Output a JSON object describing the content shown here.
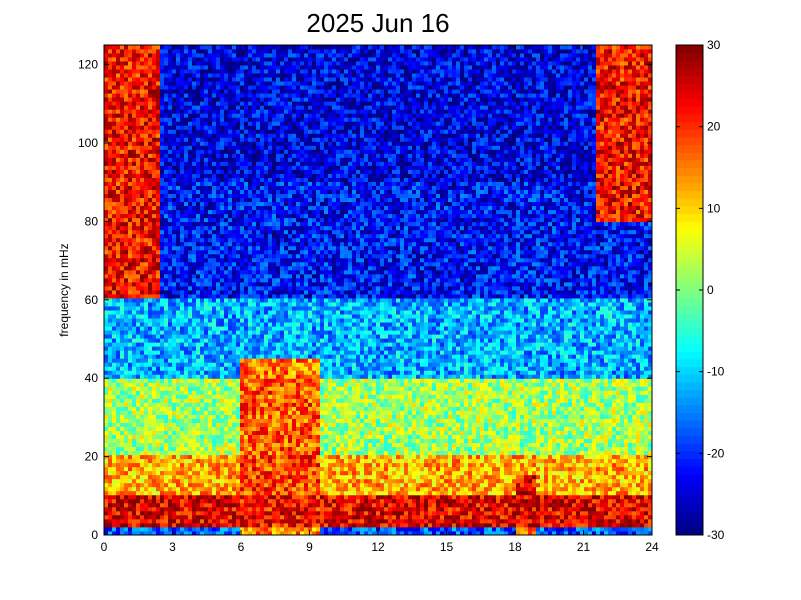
{
  "chart_data": {
    "type": "heatmap",
    "title": "2025 Jun 16",
    "xlabel": "",
    "ylabel": "frequency in mHz",
    "xlim": [
      0,
      24
    ],
    "ylim": [
      0,
      125
    ],
    "x_ticks": [
      0,
      3,
      6,
      9,
      12,
      15,
      18,
      21,
      24
    ],
    "y_ticks": [
      0,
      20,
      40,
      60,
      80,
      100,
      120
    ],
    "colorbar": {
      "colormap": "jet",
      "range": [
        -30,
        30
      ],
      "ticks": [
        30,
        20,
        10,
        0,
        -10,
        -20,
        -30
      ]
    },
    "grid": false,
    "bands": [
      {
        "freq_range": [
          0,
          2
        ],
        "level": -18
      },
      {
        "freq_range": [
          2,
          10
        ],
        "level": 24
      },
      {
        "freq_range": [
          10,
          20
        ],
        "level": 12
      },
      {
        "freq_range": [
          20,
          40
        ],
        "level": 2
      },
      {
        "freq_range": [
          40,
          60
        ],
        "level": -12
      },
      {
        "freq_range": [
          60,
          90
        ],
        "level": -22
      },
      {
        "freq_range": [
          90,
          125
        ],
        "level": -24
      }
    ],
    "bright_regions": [
      {
        "time_range": [
          0,
          2.5
        ],
        "freq_range": [
          60,
          125
        ],
        "level": 30
      },
      {
        "time_range": [
          21.5,
          24
        ],
        "freq_range": [
          80,
          125
        ],
        "level": 30
      },
      {
        "time_range": [
          6,
          9.5
        ],
        "freq_range": [
          0,
          45
        ],
        "level": 20
      },
      {
        "time_range": [
          18,
          19
        ],
        "freq_range": [
          0,
          15
        ],
        "level": 25
      }
    ]
  },
  "colors": {
    "low": "#00008f",
    "high": "#7f0000"
  }
}
